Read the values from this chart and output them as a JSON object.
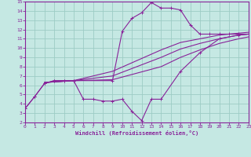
{
  "xlabel": "Windchill (Refroidissement éolien,°C)",
  "background_color": "#c5e8e3",
  "grid_color": "#9dccc5",
  "line_color": "#882299",
  "xlim": [
    0,
    23
  ],
  "ylim": [
    2,
    15
  ],
  "xticks": [
    0,
    1,
    2,
    3,
    4,
    5,
    6,
    7,
    8,
    9,
    10,
    11,
    12,
    13,
    14,
    15,
    16,
    17,
    18,
    19,
    20,
    21,
    22,
    23
  ],
  "yticks": [
    2,
    3,
    4,
    5,
    6,
    7,
    8,
    9,
    10,
    11,
    12,
    13,
    14,
    15
  ],
  "curve1_x": [
    0,
    1,
    2,
    3,
    4,
    5,
    9,
    10,
    11,
    12,
    13,
    14,
    15,
    16,
    17,
    18,
    19,
    20,
    21,
    22,
    23
  ],
  "curve1_y": [
    3.5,
    4.8,
    6.2,
    6.5,
    6.5,
    6.5,
    6.5,
    11.8,
    13.2,
    13.8,
    14.9,
    14.3,
    14.3,
    14.1,
    12.5,
    11.5,
    11.5,
    11.5,
    11.5,
    11.5,
    11.5
  ],
  "curve2_x": [
    0,
    1,
    2,
    3,
    4,
    5,
    6,
    7,
    8,
    9,
    10,
    11,
    12,
    13,
    14,
    16,
    18,
    20,
    22,
    23
  ],
  "curve2_y": [
    3.5,
    4.8,
    6.2,
    6.5,
    6.5,
    6.5,
    4.5,
    4.5,
    4.3,
    4.3,
    4.5,
    3.2,
    2.2,
    4.5,
    4.5,
    7.5,
    9.5,
    11.0,
    11.4,
    11.5
  ],
  "curve3_x": [
    2,
    5,
    9,
    14,
    16,
    18,
    20,
    22,
    23
  ],
  "curve3_y": [
    6.3,
    6.5,
    6.6,
    8.0,
    9.0,
    9.8,
    10.5,
    11.0,
    11.2
  ],
  "curve4_x": [
    2,
    5,
    9,
    14,
    16,
    18,
    20,
    22,
    23
  ],
  "curve4_y": [
    6.3,
    6.5,
    7.0,
    9.0,
    9.9,
    10.5,
    11.0,
    11.4,
    11.5
  ],
  "curve5_x": [
    2,
    5,
    9,
    14,
    16,
    18,
    20,
    22,
    23
  ],
  "curve5_y": [
    6.3,
    6.5,
    7.5,
    9.8,
    10.6,
    11.0,
    11.4,
    11.6,
    11.7
  ]
}
